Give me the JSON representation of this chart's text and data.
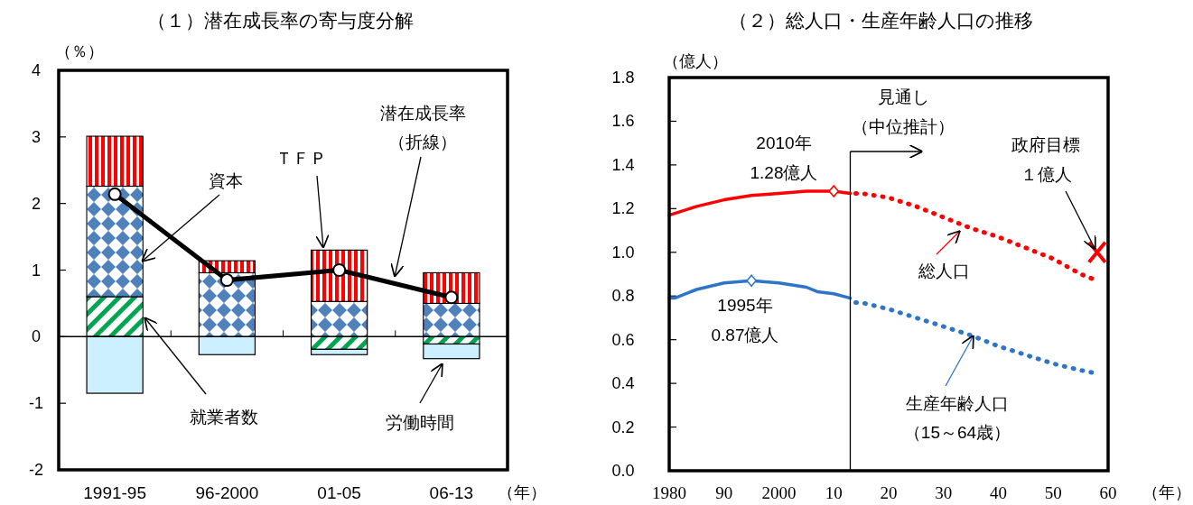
{
  "chart_data": [
    {
      "type": "bar",
      "stacked": true,
      "title": "（１）潜在成長率の寄与度分解",
      "ylabel": "（％）",
      "xlabel": "（年）",
      "categories": [
        "1991-95",
        "96-2000",
        "01-05",
        "06-13"
      ],
      "ylim": [
        -2,
        4
      ],
      "yticks": [
        -2,
        -1,
        0,
        1,
        2,
        3,
        4
      ],
      "series": [
        {
          "name": "就業者数",
          "color": "#00a550",
          "values": [
            0.6,
            0,
            -0.19,
            -0.11
          ]
        },
        {
          "name": "労働時間",
          "color": "#ccf0ff",
          "values": [
            -0.85,
            -0.27,
            -0.08,
            -0.22
          ]
        },
        {
          "name": "資本",
          "color": "#4f81bd",
          "values": [
            1.66,
            0.96,
            0.53,
            0.5
          ]
        },
        {
          "name": "ＴＦＰ",
          "color": "#ff0000",
          "values": [
            0.75,
            0.18,
            0.77,
            0.46
          ]
        },
        {
          "name": "潜在成長率（折線）",
          "type": "line",
          "color": "#000000",
          "marker": "circle",
          "values": [
            2.14,
            0.85,
            1.0,
            0.59
          ]
        }
      ]
    },
    {
      "type": "line",
      "title": "（２）総人口・生産年齢人口の推移",
      "ylabel": "（億人）",
      "xlabel": "（年）",
      "xlim": [
        1980,
        2060
      ],
      "xticks": [
        1980,
        {
          "value": 1990,
          "label": "90"
        },
        2000,
        {
          "value": 2010,
          "label": "10"
        },
        {
          "value": 2020,
          "label": "20"
        },
        {
          "value": 2030,
          "label": "30"
        },
        {
          "value": 2040,
          "label": "40"
        },
        {
          "value": 2050,
          "label": "50"
        },
        {
          "value": 2060,
          "label": "60"
        }
      ],
      "ylim": [
        0,
        1.8
      ],
      "yticks": [
        {
          "value": 0,
          "label": "0.0"
        },
        {
          "value": 0.2,
          "label": "0.2"
        },
        {
          "value": 0.4,
          "label": "0.4"
        },
        {
          "value": 0.6,
          "label": "0.6"
        },
        {
          "value": 0.8,
          "label": "0.8"
        },
        {
          "value": 1,
          "label": "1.0"
        },
        {
          "value": 1.2,
          "label": "1.2"
        },
        {
          "value": 1.4,
          "label": "1.4"
        },
        {
          "value": 1.6,
          "label": "1.6"
        },
        {
          "value": 1.8,
          "label": "1.8"
        }
      ],
      "ref_lines": [
        {
          "axis": "x",
          "value": 2013,
          "label": "見通し（中位推計）"
        }
      ],
      "annotations": [
        {
          "text": "2010年\n1.28億人",
          "x": 2010,
          "y": 1.28
        },
        {
          "text": "1995年\n0.87億人",
          "x": 1995,
          "y": 0.87
        },
        {
          "text": "政府目標１億人",
          "x": 2058,
          "y": 1.0
        }
      ],
      "series": [
        {
          "color": "#ff0000",
          "line_style": "solid",
          "x": [
            1980,
            1985,
            1990,
            1995,
            2000,
            2005,
            2010,
            2013
          ],
          "values": [
            1.17,
            1.21,
            1.24,
            1.26,
            1.27,
            1.28,
            1.28,
            1.27
          ]
        },
        {
          "name": "総人口",
          "color": "#ff0000",
          "line_style": "dotted",
          "x": [
            2014,
            2015,
            2020,
            2025,
            2030,
            2035,
            2040,
            2045,
            2050,
            2055,
            2057
          ],
          "values": [
            1.27,
            1.27,
            1.25,
            1.21,
            1.16,
            1.11,
            1.07,
            1.02,
            0.97,
            0.9,
            0.88
          ]
        },
        {
          "color": "#2e75c8",
          "line_style": "solid",
          "x": [
            1980,
            1981,
            1985,
            1990,
            1995,
            2000,
            2005,
            2007,
            2010,
            2013
          ],
          "values": [
            0.79,
            0.79,
            0.83,
            0.86,
            0.87,
            0.86,
            0.84,
            0.82,
            0.81,
            0.79
          ]
        },
        {
          "name": "生産年齢人口（15～64歳）",
          "color": "#2e75c8",
          "line_style": "dotted",
          "x": [
            2014,
            2015,
            2020,
            2025,
            2030,
            2035,
            2040,
            2045,
            2050,
            2055,
            2057
          ],
          "values": [
            0.77,
            0.77,
            0.74,
            0.7,
            0.66,
            0.62,
            0.57,
            0.53,
            0.49,
            0.46,
            0.45
          ]
        },
        {
          "type": "scatter",
          "color": "#ff0000",
          "marker": "cross",
          "x": [
            2058
          ],
          "values": [
            1.0
          ]
        }
      ]
    }
  ]
}
